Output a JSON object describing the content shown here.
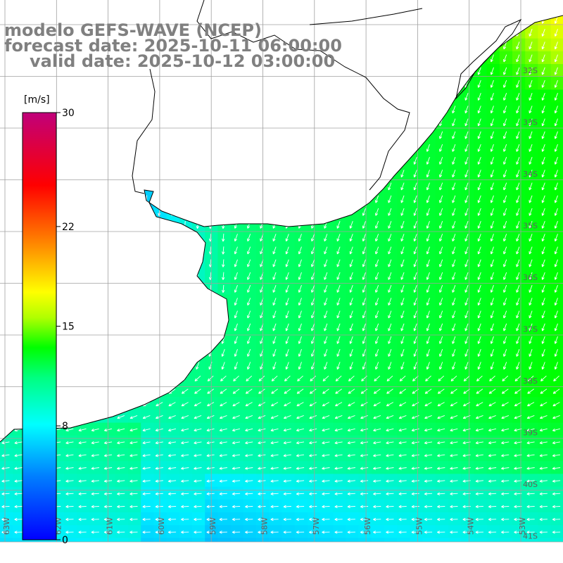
{
  "header": {
    "line1": "modelo GEFS-WAVE (NCEP)",
    "line2": "forecast date: 2025-10-11 06:00:00",
    "line3": "valid date: 2025-10-12 03:00:00"
  },
  "colorbar": {
    "unit": "[m/s]",
    "ticks": [
      {
        "value": 30,
        "label": "30"
      },
      {
        "value": 22,
        "label": "22"
      },
      {
        "value": 15,
        "label": "15"
      },
      {
        "value": 8,
        "label": "8"
      },
      {
        "value": 0,
        "label": "0"
      }
    ],
    "min": 0,
    "max": 30,
    "colors": [
      "#0000ff",
      "#0080ff",
      "#00e5ff",
      "#00ff80",
      "#00ff00",
      "#ffff00",
      "#ff8000",
      "#ff0000",
      "#c0007a"
    ]
  },
  "map": {
    "lat_labels": [
      "32S",
      "33S",
      "34S",
      "35S",
      "36S",
      "37S",
      "38S",
      "39S",
      "40S",
      "41S"
    ],
    "lon_labels": [
      "63W",
      "62W",
      "61W",
      "60W",
      "59W",
      "58W",
      "57W",
      "56W",
      "55W",
      "54W",
      "53W"
    ],
    "land_color": "#ffffff",
    "grid_color": "#a0a0a0",
    "coast_color": "#000000",
    "arrow_color": "#ffffff",
    "prevailing_direction": "from northeast to southwest"
  }
}
